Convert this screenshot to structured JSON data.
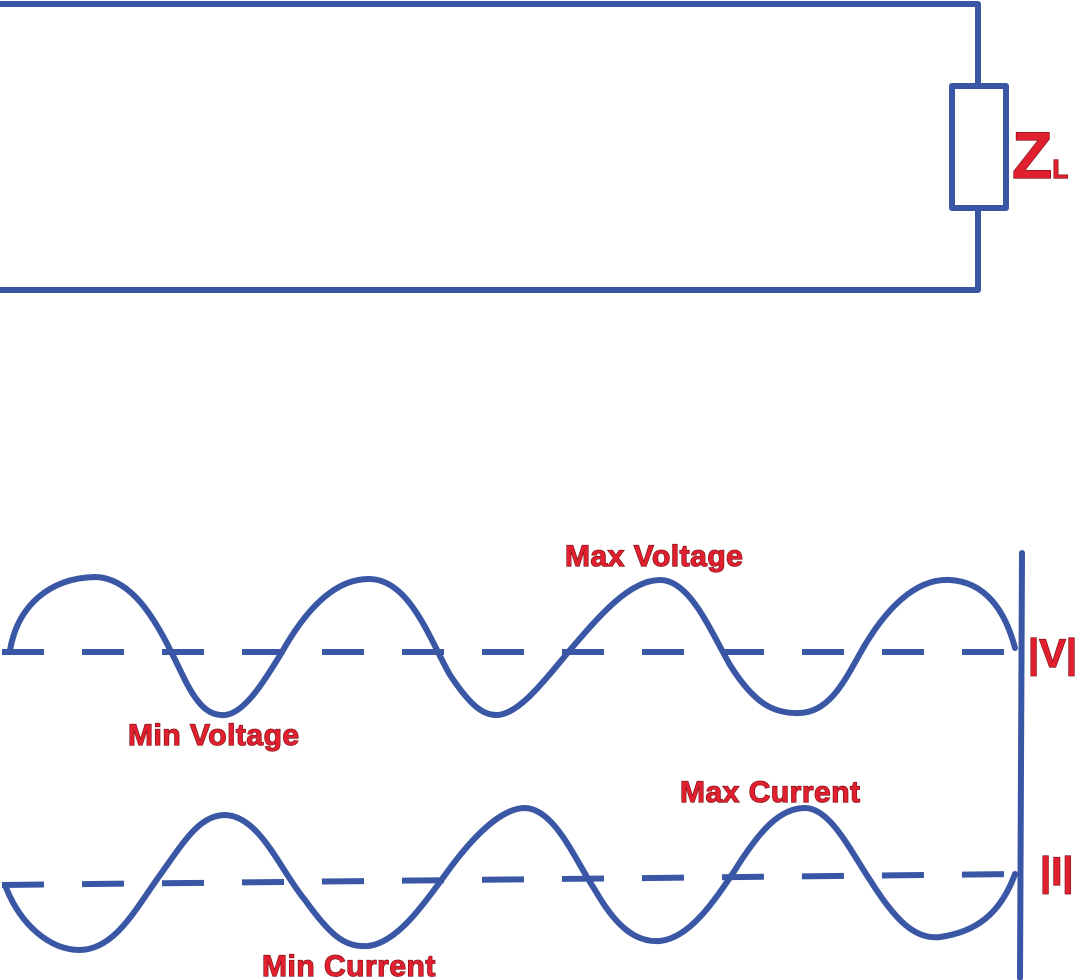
{
  "load": {
    "symbol": "Z",
    "subscript": "L"
  },
  "voltage": {
    "axis_label": "|V|",
    "max_label": "Max Voltage",
    "min_label": "Min Voltage"
  },
  "current": {
    "axis_label": "|I|",
    "max_label": "Max Current",
    "min_label": "Min Current"
  },
  "colors": {
    "line": "#3a57a5",
    "label": "#e0202e"
  }
}
